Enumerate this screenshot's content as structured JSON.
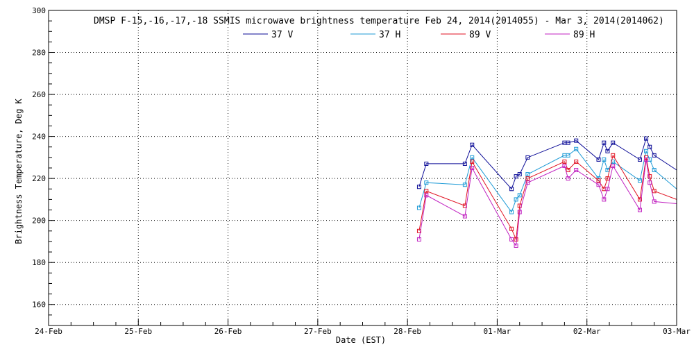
{
  "chart_data": {
    "type": "line",
    "title": "DMSP F-15,-16,-17,-18 SSMIS microwave brightness temperature Feb 24, 2014(2014055) - Mar  3, 2014(2014062)",
    "xlabel": "Date (EST)",
    "ylabel": "Brightness Temperature, Deg K",
    "xlim": [
      0,
      7
    ],
    "ylim": [
      150,
      300
    ],
    "grid": true,
    "legend_position": "top",
    "x_ticks": [
      {
        "value": 0,
        "label": "24-Feb"
      },
      {
        "value": 1,
        "label": "25-Feb"
      },
      {
        "value": 2,
        "label": "26-Feb"
      },
      {
        "value": 3,
        "label": "27-Feb"
      },
      {
        "value": 4,
        "label": "28-Feb"
      },
      {
        "value": 5,
        "label": "01-Mar"
      },
      {
        "value": 6,
        "label": "02-Mar"
      },
      {
        "value": 7,
        "label": "03-Mar"
      }
    ],
    "y_ticks": [
      160,
      180,
      200,
      220,
      240,
      260,
      280,
      300
    ],
    "series": [
      {
        "name": "37 V",
        "color": "#0a0a96",
        "x": [
          4.13,
          4.21,
          4.64,
          4.72,
          5.16,
          5.21,
          5.25,
          5.34,
          5.75,
          5.79,
          5.88,
          6.13,
          6.19,
          6.23,
          6.29,
          6.59,
          6.66,
          6.7,
          6.75,
          7.0
        ],
        "y": [
          216,
          227,
          227,
          236,
          215,
          221,
          222,
          230,
          237,
          237,
          238,
          229,
          237,
          233,
          237,
          229,
          239,
          235,
          231,
          224
        ],
        "markers": [
          true,
          true,
          true,
          true,
          true,
          true,
          true,
          true,
          true,
          true,
          true,
          true,
          true,
          true,
          true,
          true,
          true,
          true,
          true,
          false
        ]
      },
      {
        "name": "37 H",
        "color": "#1c9ad6",
        "x": [
          4.13,
          4.21,
          4.64,
          4.72,
          5.16,
          5.21,
          5.25,
          5.34,
          5.75,
          5.79,
          5.88,
          6.13,
          6.19,
          6.23,
          6.29,
          6.59,
          6.66,
          6.7,
          6.75,
          7.0
        ],
        "y": [
          206,
          218,
          217,
          230,
          204,
          210,
          212,
          222,
          231,
          231,
          234,
          220,
          229,
          224,
          228,
          219,
          233,
          229,
          224,
          215
        ],
        "markers": [
          true,
          true,
          true,
          true,
          true,
          true,
          true,
          true,
          true,
          true,
          true,
          true,
          true,
          true,
          true,
          true,
          true,
          true,
          true,
          false
        ]
      },
      {
        "name": "89 V",
        "color": "#e01020",
        "x": [
          4.13,
          4.21,
          4.64,
          4.72,
          5.16,
          5.21,
          5.25,
          5.34,
          5.75,
          5.79,
          5.88,
          6.13,
          6.19,
          6.23,
          6.29,
          6.59,
          6.66,
          6.7,
          6.75,
          7.0
        ],
        "y": [
          195,
          214,
          207,
          228,
          196,
          191,
          207,
          220,
          228,
          224,
          228,
          219,
          215,
          220,
          231,
          210,
          230,
          221,
          214,
          210
        ],
        "markers": [
          true,
          true,
          true,
          true,
          true,
          true,
          true,
          true,
          true,
          true,
          true,
          true,
          true,
          true,
          true,
          true,
          true,
          true,
          true,
          false
        ]
      },
      {
        "name": "89 H",
        "color": "#c020c0",
        "x": [
          4.13,
          4.21,
          4.64,
          4.72,
          5.16,
          5.21,
          5.25,
          5.34,
          5.75,
          5.79,
          5.88,
          6.13,
          6.19,
          6.23,
          6.29,
          6.59,
          6.66,
          6.7,
          6.75,
          7.0
        ],
        "y": [
          191,
          212,
          202,
          225,
          191,
          188,
          204,
          218,
          226,
          220,
          224,
          217,
          210,
          215,
          226,
          205,
          229,
          218,
          209,
          208
        ],
        "markers": [
          true,
          true,
          true,
          true,
          true,
          true,
          true,
          true,
          true,
          true,
          true,
          true,
          true,
          true,
          true,
          true,
          true,
          true,
          true,
          false
        ]
      }
    ]
  }
}
